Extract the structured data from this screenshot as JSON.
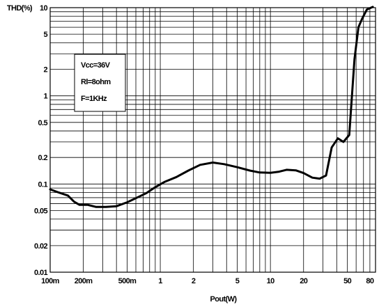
{
  "chart_data": {
    "type": "line",
    "title": "",
    "xlabel": "Pout(W)",
    "ylabel": "THD(%)",
    "x_scale": "log",
    "y_scale": "log",
    "xlim": [
      0.1,
      90
    ],
    "ylim": [
      0.01,
      10
    ],
    "grid": true,
    "x_ticks": [
      {
        "value": 0.1,
        "label": "100m"
      },
      {
        "value": 0.2,
        "label": "200m"
      },
      {
        "value": 0.5,
        "label": "500m"
      },
      {
        "value": 1,
        "label": "1"
      },
      {
        "value": 2,
        "label": "2"
      },
      {
        "value": 5,
        "label": "5"
      },
      {
        "value": 10,
        "label": "10"
      },
      {
        "value": 20,
        "label": "20"
      },
      {
        "value": 50,
        "label": "50"
      },
      {
        "value": 80,
        "label": "80"
      }
    ],
    "y_ticks": [
      {
        "value": 0.01,
        "label": "0.01"
      },
      {
        "value": 0.02,
        "label": "0.02"
      },
      {
        "value": 0.05,
        "label": "0.05"
      },
      {
        "value": 0.1,
        "label": "0.1"
      },
      {
        "value": 0.2,
        "label": "0.2"
      },
      {
        "value": 0.5,
        "label": "0.5"
      },
      {
        "value": 1,
        "label": "1"
      },
      {
        "value": 2,
        "label": "2"
      },
      {
        "value": 5,
        "label": "5"
      },
      {
        "value": 10,
        "label": "10"
      }
    ],
    "annotation": [
      "Vcc=36V",
      "Rl=8ohm",
      "F=1KHz"
    ],
    "series": [
      {
        "color": "#000000",
        "x": [
          0.1,
          0.12,
          0.145,
          0.165,
          0.185,
          0.22,
          0.26,
          0.32,
          0.4,
          0.5,
          0.6,
          0.75,
          0.9,
          1.1,
          1.4,
          1.8,
          2.3,
          3.0,
          3.8,
          5.0,
          6.5,
          8.0,
          10,
          12,
          14,
          17,
          20,
          24,
          28,
          32,
          36,
          41,
          46,
          52,
          58,
          63,
          68,
          75,
          85
        ],
        "y": [
          0.087,
          0.08,
          0.074,
          0.063,
          0.058,
          0.058,
          0.055,
          0.055,
          0.056,
          0.062,
          0.069,
          0.079,
          0.092,
          0.106,
          0.12,
          0.142,
          0.165,
          0.175,
          0.168,
          0.155,
          0.142,
          0.135,
          0.134,
          0.138,
          0.145,
          0.143,
          0.133,
          0.118,
          0.115,
          0.125,
          0.26,
          0.33,
          0.3,
          0.36,
          2.6,
          6.0,
          7.5,
          9.5,
          10.5
        ]
      }
    ]
  }
}
